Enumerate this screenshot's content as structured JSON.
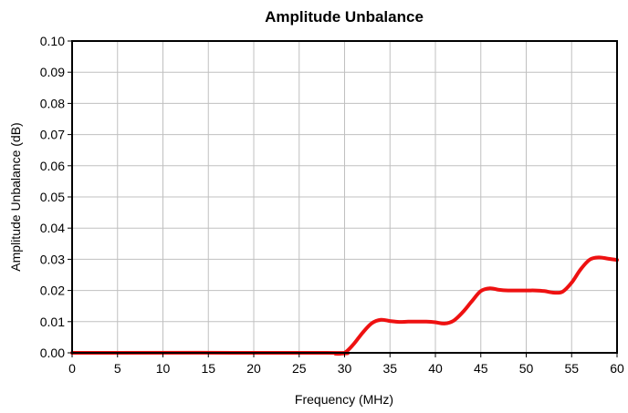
{
  "chart_data": {
    "type": "line",
    "title": "Amplitude Unbalance",
    "xlabel": "Frequency (MHz)",
    "ylabel": "Amplitude Unbalance (dB)",
    "xlim": [
      0,
      60
    ],
    "ylim": [
      0,
      0.1
    ],
    "xticks": [
      0,
      5,
      10,
      15,
      20,
      25,
      30,
      35,
      40,
      45,
      50,
      55,
      60
    ],
    "yticks": [
      0.0,
      0.01,
      0.02,
      0.03,
      0.04,
      0.05,
      0.06,
      0.07,
      0.08,
      0.09,
      0.1
    ],
    "xtick_labels": [
      "0",
      "5",
      "10",
      "15",
      "20",
      "25",
      "30",
      "35",
      "40",
      "45",
      "50",
      "55",
      "60"
    ],
    "ytick_labels": [
      "0.00",
      "0.01",
      "0.02",
      "0.03",
      "0.04",
      "0.05",
      "0.06",
      "0.07",
      "0.08",
      "0.09",
      "0.10"
    ],
    "grid": true,
    "legend": "none",
    "series": [
      {
        "color": "#ee1111",
        "x": [
          0,
          28,
          29,
          30,
          31,
          32,
          33,
          34,
          35,
          36,
          37,
          38,
          39,
          40,
          41,
          42,
          43,
          44,
          45,
          46,
          47,
          48,
          50,
          51,
          52,
          53,
          54,
          55,
          56,
          57,
          58,
          59,
          60
        ],
        "y": [
          0.0,
          0.0,
          -0.0003,
          0.0,
          0.0028,
          0.0065,
          0.0095,
          0.0106,
          0.0102,
          0.0099,
          0.01,
          0.01,
          0.01,
          0.0098,
          0.0094,
          0.0103,
          0.013,
          0.0165,
          0.0198,
          0.0207,
          0.0202,
          0.02,
          0.02,
          0.02,
          0.0198,
          0.0193,
          0.0196,
          0.0225,
          0.0268,
          0.0299,
          0.0306,
          0.0302,
          0.0298
        ]
      }
    ]
  }
}
